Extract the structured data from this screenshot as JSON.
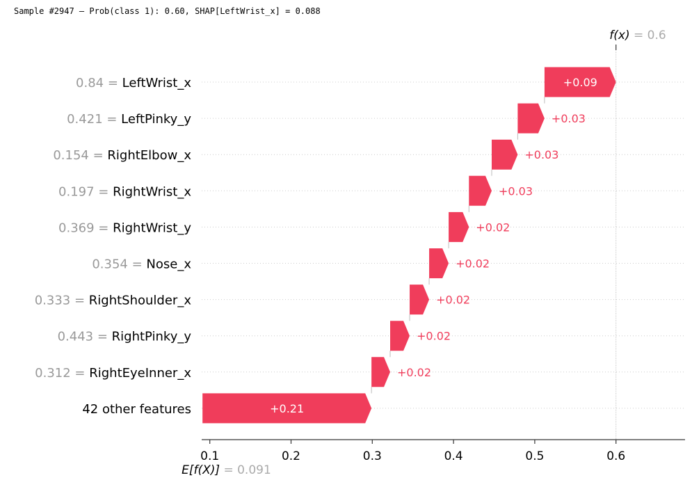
{
  "header": {
    "title": "Sample #2947 — Prob(class 1): 0.60, SHAP[LeftWrist_x] = 0.088"
  },
  "chart_data": {
    "type": "bar",
    "subtype": "shap-waterfall",
    "base_value": 0.091,
    "output_value": 0.6,
    "fx_label": "f(x)",
    "fx_value_label": "= 0.6",
    "efx_label": "E[f(X)]",
    "efx_value_label": "= 0.091",
    "xlim": [
      0.09,
      0.685
    ],
    "xticks": [
      0.1,
      0.2,
      0.3,
      0.4,
      0.5,
      0.6
    ],
    "xtick_labels": [
      "0.1",
      "0.2",
      "0.3",
      "0.4",
      "0.5",
      "0.6"
    ],
    "bar_color": "#ff0051",
    "bar_color_rendered": "#f03d5b",
    "features": [
      {
        "value": "0.84",
        "name": "LeftWrist_x",
        "shap": 0.088,
        "label": "+0.09"
      },
      {
        "value": "0.421",
        "name": "LeftPinky_y",
        "shap": 0.033,
        "label": "+0.03"
      },
      {
        "value": "0.154",
        "name": "RightElbow_x",
        "shap": 0.032,
        "label": "+0.03"
      },
      {
        "value": "0.197",
        "name": "RightWrist_x",
        "shap": 0.028,
        "label": "+0.03"
      },
      {
        "value": "0.369",
        "name": "RightWrist_y",
        "shap": 0.025,
        "label": "+0.02"
      },
      {
        "value": "0.354",
        "name": "Nose_x",
        "shap": 0.024,
        "label": "+0.02"
      },
      {
        "value": "0.333",
        "name": "RightShoulder_x",
        "shap": 0.024,
        "label": "+0.02"
      },
      {
        "value": "0.443",
        "name": "RightPinky_y",
        "shap": 0.024,
        "label": "+0.02"
      },
      {
        "value": "0.312",
        "name": "RightEyeInner_x",
        "shap": 0.023,
        "label": "+0.02"
      },
      {
        "value": "",
        "name": "42 other features",
        "shap": 0.208,
        "label": "+0.21"
      }
    ]
  }
}
